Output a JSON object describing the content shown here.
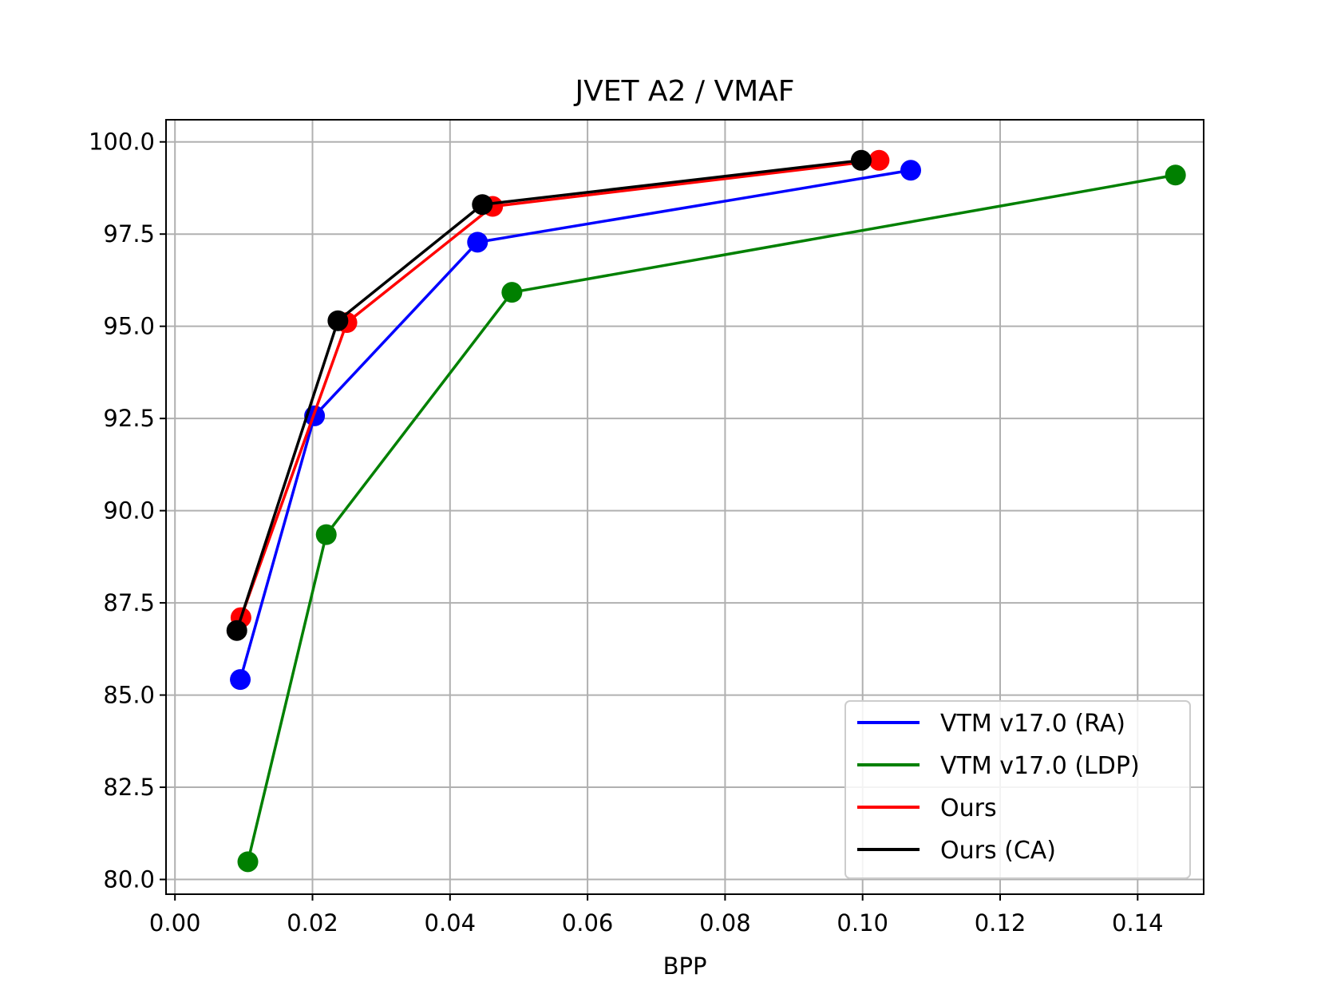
{
  "chart_data": {
    "type": "line",
    "title": "JVET A2 / VMAF",
    "xlabel": "BPP",
    "ylabel": "",
    "xlim": [
      -0.0013,
      0.1496
    ],
    "ylim": [
      79.6,
      100.6
    ],
    "xticks": [
      0.0,
      0.02,
      0.04,
      0.06,
      0.08,
      0.1,
      0.12,
      0.14
    ],
    "xtick_labels": [
      "0.00",
      "0.02",
      "0.04",
      "0.06",
      "0.08",
      "0.10",
      "0.12",
      "0.14"
    ],
    "yticks": [
      80.0,
      82.5,
      85.0,
      87.5,
      90.0,
      92.5,
      95.0,
      97.5,
      100.0
    ],
    "ytick_labels": [
      "80.0",
      "82.5",
      "85.0",
      "87.5",
      "90.0",
      "92.5",
      "95.0",
      "97.5",
      "100.0"
    ],
    "grid": true,
    "legend_position": "bottom-right",
    "series": [
      {
        "name": "VTM v17.0 (RA)",
        "color": "#0000ff",
        "x": [
          0.0095,
          0.0203,
          0.044,
          0.107
        ],
        "y": [
          85.42,
          92.57,
          97.28,
          99.23
        ]
      },
      {
        "name": "VTM v17.0 (LDP)",
        "color": "#008000",
        "x": [
          0.0106,
          0.022,
          0.049,
          0.1455
        ],
        "y": [
          80.48,
          89.35,
          95.92,
          99.1
        ]
      },
      {
        "name": "Ours",
        "color": "#ff0000",
        "x": [
          0.0096,
          0.025,
          0.0462,
          0.1024
        ],
        "y": [
          87.1,
          95.1,
          98.25,
          99.5
        ]
      },
      {
        "name": "Ours (CA)",
        "color": "#000000",
        "x": [
          0.009,
          0.0237,
          0.0447,
          0.0998
        ],
        "y": [
          86.75,
          95.15,
          98.3,
          99.5
        ]
      }
    ]
  }
}
